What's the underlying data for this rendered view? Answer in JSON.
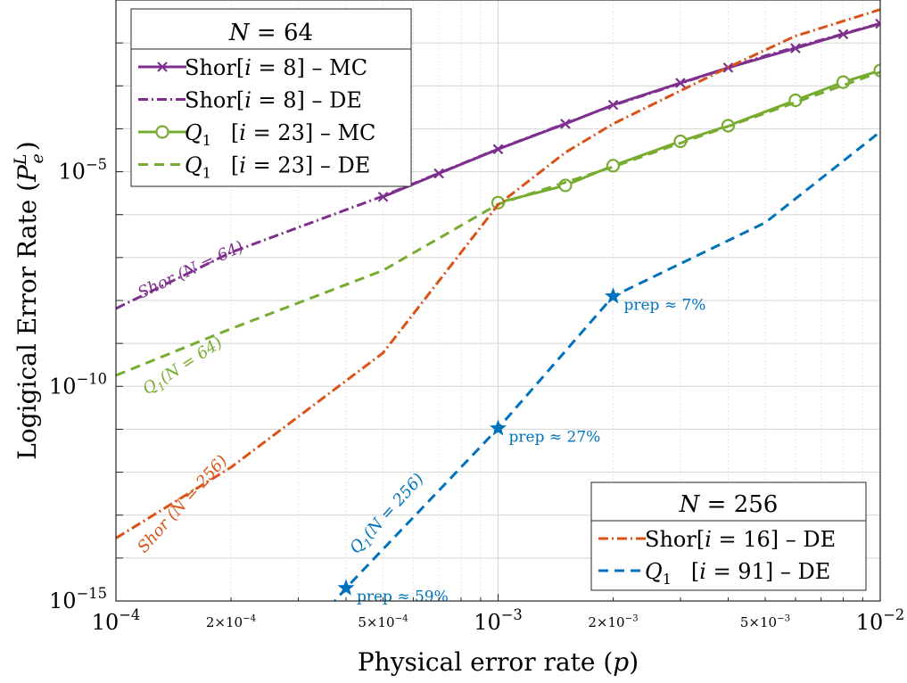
{
  "chart_data": {
    "type": "line",
    "x_scale": "log",
    "y_scale": "log",
    "xlim": [
      0.0001,
      0.01
    ],
    "ylim": [
      1e-15,
      0.1
    ],
    "grid": true,
    "xlabel": "Physical error rate (p)",
    "ylabel": "Logigical Error Rate (P_e^L)",
    "x_ticks": [
      {
        "v": 0.0001,
        "label": "10^{-4}",
        "major": true
      },
      {
        "v": 0.0002,
        "label": "2×10^{-4}",
        "major": false
      },
      {
        "v": 0.0005,
        "label": "5×10^{-4}",
        "major": false
      },
      {
        "v": 0.001,
        "label": "10^{-3}",
        "major": true
      },
      {
        "v": 0.002,
        "label": "2×10^{-3}",
        "major": false
      },
      {
        "v": 0.005,
        "label": "5×10^{-3}",
        "major": false
      },
      {
        "v": 0.01,
        "label": "10^{-2}",
        "major": true
      }
    ],
    "y_ticks": [
      {
        "v": 1e-05,
        "label": "10^{-5}"
      },
      {
        "v": 1e-10,
        "label": "10^{-10}"
      },
      {
        "v": 1e-15,
        "label": "10^{-15}"
      }
    ],
    "series": [
      {
        "name": "Shor[i = 8] – MC",
        "legend": 1,
        "color": "#7E2F8E",
        "dash": "solid",
        "marker": "x",
        "x": [
          0.0005,
          0.0007,
          0.001,
          0.0015,
          0.002,
          0.003,
          0.004,
          0.006,
          0.008,
          0.01
        ],
        "y": [
          2.6e-06,
          9.1e-06,
          3.35e-05,
          0.00013,
          0.00036,
          0.00117,
          0.00265,
          0.0075,
          0.016,
          0.028
        ]
      },
      {
        "name": "Shor[i = 8] – DE",
        "legend": 1,
        "color": "#7E2F8E",
        "dash": "dashdot",
        "marker": "none",
        "x": [
          0.0001,
          0.0002,
          0.0005,
          0.001,
          0.002,
          0.005,
          0.01
        ],
        "y": [
          6.5e-09,
          1.32e-07,
          2.7e-06,
          3.4e-05,
          0.00035,
          0.005,
          0.0285
        ]
      },
      {
        "name": "Q1 [i = 23] – MC",
        "legend": 1,
        "color": "#77AC30",
        "dash": "solid",
        "marker": "o",
        "x": [
          0.001,
          0.0015,
          0.002,
          0.003,
          0.004,
          0.006,
          0.008,
          0.01
        ],
        "y": [
          1.9e-06,
          4.8e-06,
          1.38e-05,
          5.1e-05,
          0.000118,
          0.00046,
          0.00122,
          0.00228
        ]
      },
      {
        "name": "Q1 [i = 23] – DE",
        "legend": 1,
        "color": "#77AC30",
        "dash": "dash",
        "marker": "none",
        "x": [
          0.0001,
          0.0002,
          0.0005,
          0.001,
          0.002,
          0.005,
          0.01
        ],
        "y": [
          1.8e-10,
          2.2e-09,
          5e-08,
          1.75e-06,
          1.3e-05,
          0.00023,
          0.0021
        ]
      },
      {
        "name": "Shor[i = 16] – DE",
        "legend": 2,
        "color": "#D95319",
        "dash": "dashdot",
        "marker": "none",
        "x": [
          0.0001,
          0.0002,
          0.0005,
          0.001,
          0.0015,
          0.002,
          0.004,
          0.006,
          0.01
        ],
        "y": [
          2.9e-14,
          1.3e-12,
          6e-10,
          1.7e-06,
          2.8e-05,
          0.00013,
          0.0027,
          0.0145,
          0.06
        ]
      },
      {
        "name": "Q1 [i = 91] – DE",
        "legend": 2,
        "color": "#0072BD",
        "dash": "dash",
        "marker": "none",
        "x": [
          0.0003,
          0.0004,
          0.001,
          0.002,
          0.005,
          0.01
        ],
        "y": [
          1e-16,
          2e-15,
          1.05e-11,
          1.25e-08,
          6.5e-07,
          8.5e-05
        ]
      }
    ],
    "stars": [
      {
        "x": 0.0004,
        "y": 2e-15,
        "label": "prep ≈ 59%"
      },
      {
        "x": 0.001,
        "y": 1.05e-11,
        "label": "prep ≈ 27%"
      },
      {
        "x": 0.002,
        "y": 1.25e-08,
        "label": "prep ≈ 7%"
      }
    ],
    "star_color": "#0072BD",
    "curve_labels": [
      {
        "text": "Shor (N = 64)",
        "color": "#7E2F8E"
      },
      {
        "text": "Q1(N = 64)",
        "color": "#77AC30"
      },
      {
        "text": "Shor (N = 256)",
        "color": "#D95319"
      },
      {
        "text": "Q1(N = 256)",
        "color": "#0072BD"
      }
    ],
    "legends": [
      {
        "title": "N = 64",
        "placement": "top-left"
      },
      {
        "title": "N = 256",
        "placement": "bottom-right"
      }
    ]
  }
}
